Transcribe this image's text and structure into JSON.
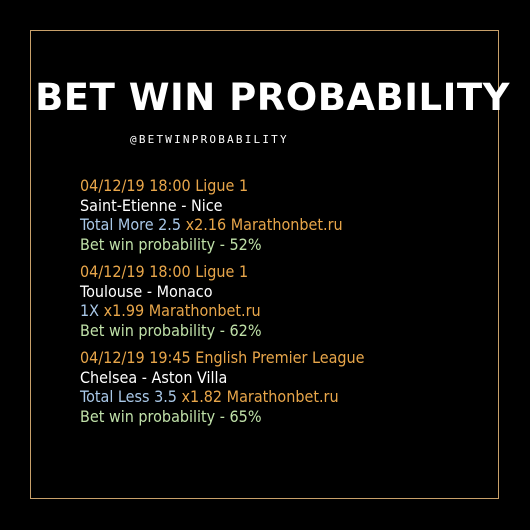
{
  "title": "BET WIN PROBABILITY",
  "handle": "@betwinprobability",
  "colors": {
    "background": "#000000",
    "frame": "#c8a06a",
    "meta": "#e8a64a",
    "teams": "#ffffff",
    "market": "#a9c8e8",
    "odds": "#e8a64a",
    "probability": "#bfe0a8"
  },
  "bets": [
    {
      "meta": "04/12/19 18:00 Ligue 1",
      "teams": "Saint-Etienne - Nice",
      "market": "Total More 2.5",
      "odds": "x2.16 Marathonbet.ru",
      "probability": "Bet win probability - 52%"
    },
    {
      "meta": "04/12/19 18:00 Ligue 1",
      "teams": "Toulouse - Monaco",
      "market": "1X",
      "odds": "x1.99 Marathonbet.ru",
      "probability": "Bet win probability - 62%"
    },
    {
      "meta": "04/12/19 19:45 English Premier League",
      "teams": "Chelsea - Aston Villa",
      "market": "Total Less 3.5",
      "odds": "x1.82 Marathonbet.ru",
      "probability": "Bet win probability - 65%"
    }
  ]
}
